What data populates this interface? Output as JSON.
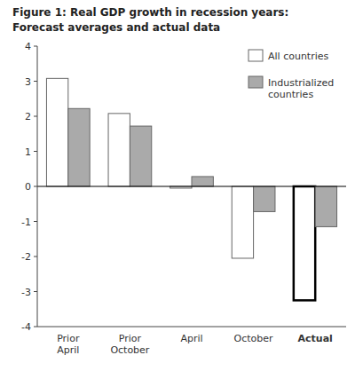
{
  "chart_data": {
    "type": "bar",
    "title": "Figure 1: Real GDP growth in recession years:",
    "subtitle": "Forecast averages and actual data",
    "categories": [
      "Prior\nApril",
      "Prior\nOctober",
      "April",
      "October",
      "Actual"
    ],
    "series": [
      {
        "name": "All countries",
        "color": "#ffffff",
        "values": [
          3.08,
          2.08,
          -0.05,
          -2.05,
          -3.25
        ]
      },
      {
        "name": "Industrialized\ncountries",
        "color": "#aaaaaa",
        "values": [
          2.22,
          1.72,
          0.28,
          -0.72,
          -1.15
        ]
      }
    ],
    "ylim": [
      -4,
      4
    ],
    "yticks": [
      -4,
      -3,
      -2,
      -1,
      0,
      1,
      2,
      3,
      4
    ],
    "grid": false,
    "legend": "upper right"
  }
}
